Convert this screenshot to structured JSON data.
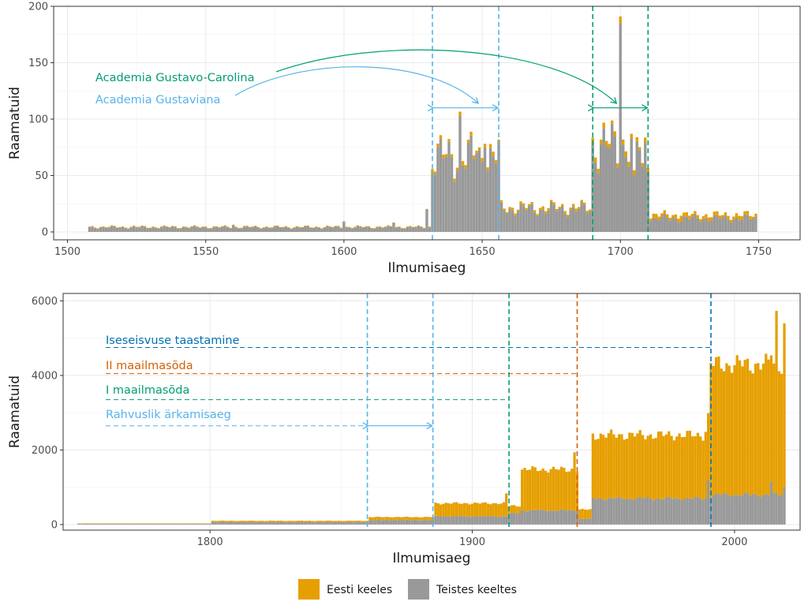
{
  "colors": {
    "estonian": "#E69F00",
    "other": "#999999",
    "sky": "#56B4E9",
    "green": "#009E73",
    "vermillion": "#D55E00",
    "blue": "#0072B2",
    "grid": "#ebebeb",
    "panel_border": "#333333"
  },
  "legend": {
    "estonian_label": "Eesti keeles",
    "other_label": "Teistes keeltes"
  },
  "chart_data": [
    {
      "type": "bar",
      "stacked": true,
      "xlabel": "Ilmumisaeg",
      "ylabel": "Raamatuid",
      "xlim": [
        1495,
        1765
      ],
      "ylim": [
        -7,
        200
      ],
      "x_ticks": [
        1500,
        1550,
        1600,
        1650,
        1700,
        1750
      ],
      "y_ticks": [
        0,
        50,
        100,
        150,
        200
      ],
      "grid": true,
      "series_names": [
        "Eesti keeles",
        "Teistes keeltes"
      ],
      "periods": [
        {
          "label": "Academia Gustaviana",
          "start": 1632,
          "end": 1656,
          "color": "sky"
        },
        {
          "label": "Academia Gustavo-Carolina",
          "start": 1690,
          "end": 1710,
          "color": "green"
        }
      ],
      "other_segments": [
        {
          "from": 1508,
          "to": 1631,
          "value": 4
        },
        {
          "from": 1632,
          "to": 1656,
          "value": 65
        },
        {
          "from": 1657,
          "to": 1689,
          "value": 20
        },
        {
          "from": 1690,
          "to": 1710,
          "value": 75
        },
        {
          "from": 1711,
          "to": 1749,
          "value": 12
        }
      ],
      "other_points": [
        {
          "x": 1524,
          "value": 5
        },
        {
          "x": 1560,
          "value": 6
        },
        {
          "x": 1600,
          "value": 9
        },
        {
          "x": 1618,
          "value": 8
        },
        {
          "x": 1630,
          "value": 20
        },
        {
          "x": 1642,
          "value": 103
        },
        {
          "x": 1648,
          "value": 70
        },
        {
          "x": 1651,
          "value": 75
        },
        {
          "x": 1696,
          "value": 75
        },
        {
          "x": 1700,
          "value": 185
        },
        {
          "x": 1705,
          "value": 50
        },
        {
          "x": 1708,
          "value": 58
        }
      ],
      "estonian_segments": [
        {
          "from": 1508,
          "to": 1631,
          "value": 0.5
        },
        {
          "from": 1632,
          "to": 1656,
          "value": 3
        },
        {
          "from": 1657,
          "to": 1689,
          "value": 2
        },
        {
          "from": 1690,
          "to": 1710,
          "value": 4
        },
        {
          "from": 1711,
          "to": 1749,
          "value": 3
        }
      ],
      "estonian_points": [
        {
          "x": 1700,
          "value": 6
        },
        {
          "x": 1722,
          "value": 5
        }
      ]
    },
    {
      "type": "bar",
      "stacked": true,
      "xlabel": "Ilmumisaeg",
      "ylabel": "Raamatuid",
      "xlim": [
        1744,
        2025
      ],
      "ylim": [
        -150,
        6200
      ],
      "x_ticks": [
        1800,
        1900,
        2000
      ],
      "y_ticks": [
        0,
        2000,
        4000,
        6000
      ],
      "grid": true,
      "series_names": [
        "Eesti keeles",
        "Teistes keeltes"
      ],
      "events": [
        {
          "label": "Iseseisvuse taastamine",
          "year": 1991,
          "level": 4750,
          "color": "blue"
        },
        {
          "label": "II maailmasõda",
          "year": 1940,
          "level": 4050,
          "color": "vermillion"
        },
        {
          "label": "I maailmasõda",
          "year": 1914,
          "level": 3350,
          "color": "green"
        },
        {
          "label": "Rahvuslik ärkamisaeg",
          "start": 1860,
          "end": 1885,
          "level": 2650,
          "color": "sky"
        }
      ],
      "other_segments": [
        {
          "from": 1750,
          "to": 1800,
          "value": 20
        },
        {
          "from": 1801,
          "to": 1860,
          "value": 70
        },
        {
          "from": 1861,
          "to": 1885,
          "value": 120
        },
        {
          "from": 1886,
          "to": 1913,
          "value": 220
        },
        {
          "from": 1914,
          "to": 1918,
          "value": 300
        },
        {
          "from": 1919,
          "to": 1940,
          "value": 380
        },
        {
          "from": 1941,
          "to": 1945,
          "value": 150
        },
        {
          "from": 1946,
          "to": 1990,
          "value": 700
        },
        {
          "from": 1991,
          "to": 2019,
          "value": 800
        }
      ],
      "other_points": [
        {
          "x": 1990,
          "value": 1200
        },
        {
          "x": 2014,
          "value": 1150
        },
        {
          "x": 2019,
          "value": 1000
        }
      ],
      "estonian_segments": [
        {
          "from": 1750,
          "to": 1800,
          "value": 10
        },
        {
          "from": 1801,
          "to": 1860,
          "value": 30
        },
        {
          "from": 1861,
          "to": 1885,
          "value": 80
        },
        {
          "from": 1886,
          "to": 1913,
          "value": 350
        },
        {
          "from": 1914,
          "to": 1918,
          "value": 200
        },
        {
          "from": 1919,
          "to": 1940,
          "value": 1100
        },
        {
          "from": 1941,
          "to": 1945,
          "value": 250
        },
        {
          "from": 1946,
          "to": 1990,
          "value": 1700
        },
        {
          "from": 1991,
          "to": 2019,
          "value": 3500
        }
      ],
      "estonian_points": [
        {
          "x": 1913,
          "value": 620
        },
        {
          "x": 1939,
          "value": 1580
        },
        {
          "x": 1989,
          "value": 1780
        },
        {
          "x": 2016,
          "value": 4900
        },
        {
          "x": 2019,
          "value": 4400
        }
      ]
    }
  ]
}
